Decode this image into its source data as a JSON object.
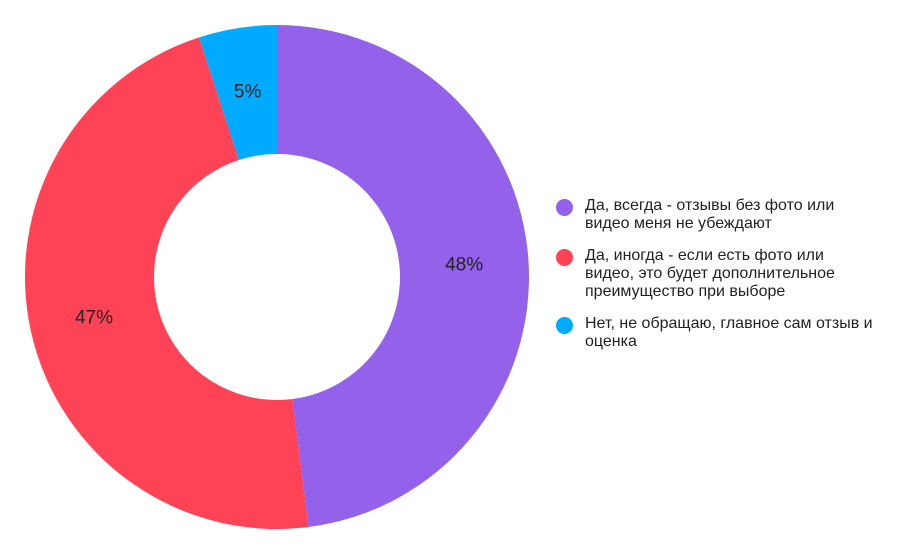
{
  "chart_data": {
    "type": "pie",
    "variant": "donut",
    "legend_position": "right",
    "slices": [
      {
        "label": "Да, всегда - отзывы без фото или видео меня не убеждают",
        "value": 48,
        "display": "48%",
        "color": "#9461EB"
      },
      {
        "label": "Да, иногда - если есть фото или видео, это будет дополнительное преимущество при выборе",
        "value": 47,
        "display": "47%",
        "color": "#FF4356"
      },
      {
        "label": "Нет, не обращаю, главное сам отзыв и оценка",
        "value": 5,
        "display": "5%",
        "color": "#00AAFF"
      }
    ]
  }
}
